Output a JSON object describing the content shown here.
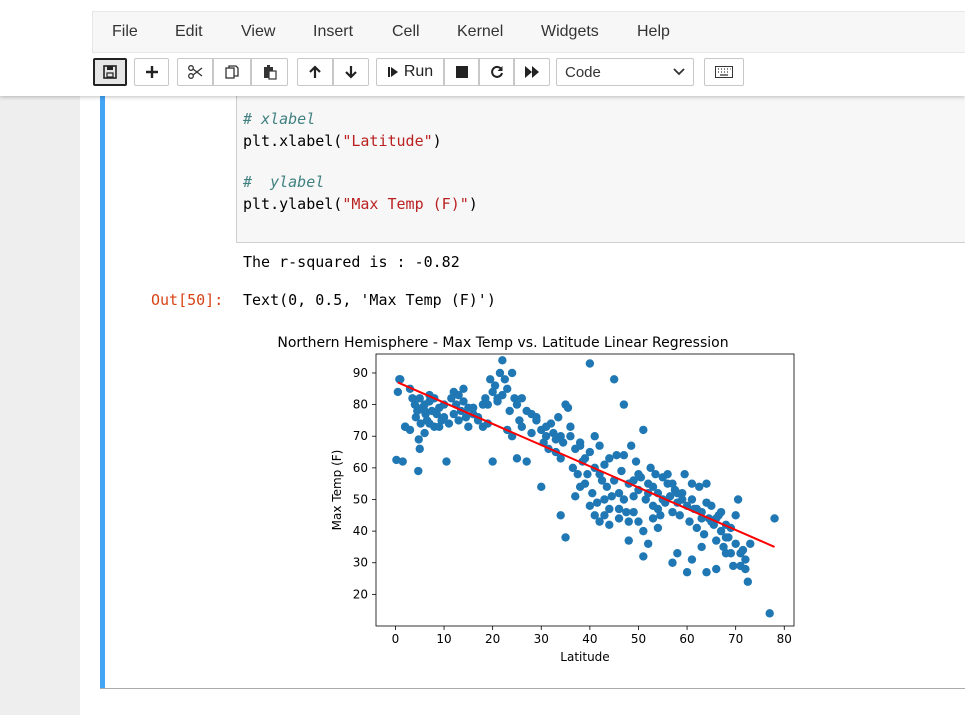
{
  "menu": {
    "items": [
      "File",
      "Edit",
      "View",
      "Insert",
      "Cell",
      "Kernel",
      "Widgets",
      "Help"
    ]
  },
  "toolbar": {
    "run_label": "Run",
    "cell_type": "Code",
    "icons": [
      "save-icon",
      "plus-icon",
      "scissors-icon",
      "copy-icon",
      "paste-icon",
      "arrow-up-icon",
      "arrow-down-icon",
      "step-forward-icon",
      "stop-icon",
      "restart-icon",
      "fast-forward-icon",
      "keyboard-icon"
    ]
  },
  "cell": {
    "code_lines": [
      {
        "comment": "# xlabel"
      },
      {
        "code": "plt.xlabel(",
        "string": "\"Latitude\"",
        "close": ")"
      },
      {
        "blank": true
      },
      {
        "comment": "#  ylabel"
      },
      {
        "code": "plt.ylabel(",
        "string": "\"Max Temp (F)\"",
        "close": ")"
      }
    ],
    "stdout": "The r-squared is : -0.82",
    "out_prompt": "Out[50]:",
    "out_text": "Text(0, 0.5, 'Max Temp (F)')"
  },
  "chart_data": {
    "type": "scatter",
    "title": "Northern Hemisphere - Max Temp vs. Latitude Linear Regression",
    "xlabel": "Latitude",
    "ylabel": "Max Temp (F)",
    "xlim": [
      -4,
      82
    ],
    "ylim": [
      10,
      96
    ],
    "xticks": [
      0,
      10,
      20,
      30,
      40,
      50,
      60,
      70,
      80
    ],
    "yticks": [
      20,
      30,
      40,
      50,
      60,
      70,
      80,
      90
    ],
    "grid": false,
    "colors": {
      "points": "#1f77b4",
      "regression": "#ff0000"
    },
    "regression": {
      "x": [
        0.5,
        78
      ],
      "y": [
        87,
        35
      ]
    },
    "points": [
      [
        0.5,
        84
      ],
      [
        0.8,
        88
      ],
      [
        1.5,
        62
      ],
      [
        0.2,
        62.5
      ],
      [
        2,
        73
      ],
      [
        3,
        72
      ],
      [
        3.5,
        82
      ],
      [
        4,
        80
      ],
      [
        4.2,
        76
      ],
      [
        4.5,
        78
      ],
      [
        5,
        82
      ],
      [
        5.2,
        74
      ],
      [
        5.5,
        79
      ],
      [
        6,
        80
      ],
      [
        6.2,
        77
      ],
      [
        6.5,
        75
      ],
      [
        7,
        81
      ],
      [
        7.5,
        78
      ],
      [
        8,
        73
      ],
      [
        8.5,
        77
      ],
      [
        9,
        79
      ],
      [
        9.5,
        75
      ],
      [
        4.8,
        69
      ],
      [
        5,
        66
      ],
      [
        4.7,
        59
      ],
      [
        6,
        78
      ],
      [
        7,
        83
      ],
      [
        10,
        80
      ],
      [
        10.5,
        62
      ],
      [
        11,
        74
      ],
      [
        11.5,
        82
      ],
      [
        12,
        84
      ],
      [
        12.5,
        80
      ],
      [
        13,
        83
      ],
      [
        13.5,
        78
      ],
      [
        14,
        85
      ],
      [
        14.5,
        76
      ],
      [
        15,
        79
      ],
      [
        16,
        77
      ],
      [
        17,
        75
      ],
      [
        18,
        73
      ],
      [
        18.5,
        82
      ],
      [
        19,
        80
      ],
      [
        19.5,
        88
      ],
      [
        20,
        84
      ],
      [
        20.5,
        86
      ],
      [
        21,
        82
      ],
      [
        21.5,
        90
      ],
      [
        22,
        83
      ],
      [
        22.5,
        88
      ],
      [
        23,
        85
      ],
      [
        23.5,
        78
      ],
      [
        24,
        90
      ],
      [
        24.5,
        82
      ],
      [
        25,
        80
      ],
      [
        25.5,
        75
      ],
      [
        26,
        73
      ],
      [
        27,
        78
      ],
      [
        28,
        77
      ],
      [
        29,
        75
      ],
      [
        30,
        72
      ],
      [
        30.5,
        68
      ],
      [
        31,
        70
      ],
      [
        31.5,
        66
      ],
      [
        32,
        74
      ],
      [
        32.5,
        71
      ],
      [
        33,
        69
      ],
      [
        33.5,
        76
      ],
      [
        34,
        70
      ],
      [
        34.5,
        68
      ],
      [
        35,
        80
      ],
      [
        35.5,
        79
      ],
      [
        36,
        73
      ],
      [
        36.5,
        60
      ],
      [
        37,
        66
      ],
      [
        37.5,
        58
      ],
      [
        38,
        68
      ],
      [
        38.5,
        62
      ],
      [
        39,
        55
      ],
      [
        39.5,
        58
      ],
      [
        40,
        65
      ],
      [
        40.5,
        52
      ],
      [
        41,
        70
      ],
      [
        41.5,
        49
      ],
      [
        42,
        67
      ],
      [
        42.5,
        56
      ],
      [
        43,
        61
      ],
      [
        43.5,
        54
      ],
      [
        44,
        63
      ],
      [
        44.5,
        51
      ],
      [
        45,
        88
      ],
      [
        45.5,
        64
      ],
      [
        46,
        52
      ],
      [
        46.5,
        59
      ],
      [
        47,
        80
      ],
      [
        47.5,
        46
      ],
      [
        48,
        55
      ],
      [
        48.5,
        67
      ],
      [
        49,
        56
      ],
      [
        49.5,
        62
      ],
      [
        50,
        53
      ],
      [
        50.5,
        57
      ],
      [
        51,
        72
      ],
      [
        51.5,
        50
      ],
      [
        52,
        55
      ],
      [
        52.5,
        60
      ],
      [
        53,
        48
      ],
      [
        53.5,
        58
      ],
      [
        54,
        52
      ],
      [
        54.5,
        45
      ],
      [
        55,
        57
      ],
      [
        55.5,
        49
      ],
      [
        56,
        55
      ],
      [
        56.5,
        51
      ],
      [
        57,
        46
      ],
      [
        57.5,
        53
      ],
      [
        58,
        49
      ],
      [
        58.5,
        45
      ],
      [
        59,
        52
      ],
      [
        59.5,
        58
      ],
      [
        60,
        48
      ],
      [
        60.5,
        43
      ],
      [
        61,
        50
      ],
      [
        61.5,
        47
      ],
      [
        62,
        41
      ],
      [
        62.5,
        54
      ],
      [
        63,
        46
      ],
      [
        63.5,
        39
      ],
      [
        64,
        55
      ],
      [
        64.5,
        44
      ],
      [
        65,
        48
      ],
      [
        65.5,
        42
      ],
      [
        66,
        37
      ],
      [
        66.5,
        45
      ],
      [
        67,
        40
      ],
      [
        67.5,
        35
      ],
      [
        68,
        42
      ],
      [
        68.5,
        38
      ],
      [
        69,
        33
      ],
      [
        69.5,
        29
      ],
      [
        70,
        36
      ],
      [
        70.5,
        50
      ],
      [
        71,
        29
      ],
      [
        71.5,
        34
      ],
      [
        72,
        28
      ],
      [
        72.5,
        24
      ],
      [
        73,
        36
      ],
      [
        77,
        14
      ],
      [
        78,
        44
      ],
      [
        22,
        94
      ],
      [
        40,
        93
      ],
      [
        34,
        45
      ],
      [
        35,
        38
      ],
      [
        46,
        44
      ],
      [
        48,
        37
      ],
      [
        51,
        32
      ],
      [
        52,
        36
      ],
      [
        57,
        30
      ],
      [
        58,
        33
      ],
      [
        60,
        27
      ],
      [
        61,
        31
      ],
      [
        63,
        35
      ],
      [
        64,
        27
      ],
      [
        66,
        28
      ],
      [
        68,
        33
      ],
      [
        20,
        62
      ],
      [
        25,
        63
      ],
      [
        27,
        62
      ],
      [
        30,
        54
      ],
      [
        18,
        80
      ],
      [
        16,
        79
      ],
      [
        14,
        81
      ],
      [
        12,
        77
      ],
      [
        10,
        76
      ],
      [
        8,
        82
      ],
      [
        6,
        71
      ],
      [
        3,
        85
      ],
      [
        2,
        73
      ],
      [
        1,
        88
      ],
      [
        7,
        74
      ],
      [
        9,
        73
      ],
      [
        13,
        75
      ],
      [
        15,
        73
      ],
      [
        17,
        76
      ],
      [
        19,
        74
      ],
      [
        21,
        81
      ],
      [
        23,
        72
      ],
      [
        24,
        70
      ],
      [
        26,
        82
      ],
      [
        28,
        71
      ],
      [
        29,
        76
      ],
      [
        31,
        73
      ],
      [
        33,
        65
      ],
      [
        34,
        63
      ],
      [
        36,
        70
      ],
      [
        38,
        67
      ],
      [
        39,
        63
      ],
      [
        41,
        60
      ],
      [
        42,
        58
      ],
      [
        43,
        50
      ],
      [
        44,
        47
      ],
      [
        45,
        56
      ],
      [
        47,
        64
      ],
      [
        49,
        51
      ],
      [
        50,
        58
      ],
      [
        52,
        52
      ],
      [
        53,
        54
      ],
      [
        54,
        47
      ],
      [
        55,
        50
      ],
      [
        56,
        58
      ],
      [
        57,
        55
      ],
      [
        58,
        52
      ],
      [
        59,
        50
      ],
      [
        61,
        55
      ],
      [
        62,
        47
      ],
      [
        63,
        44
      ],
      [
        64,
        49
      ],
      [
        65,
        43
      ],
      [
        66,
        44
      ],
      [
        67,
        46
      ],
      [
        68,
        38
      ],
      [
        69,
        41
      ],
      [
        70,
        45
      ],
      [
        71,
        33
      ],
      [
        72,
        31
      ],
      [
        37,
        51
      ],
      [
        38,
        54
      ],
      [
        40,
        48
      ],
      [
        41,
        45
      ],
      [
        42,
        43
      ],
      [
        43,
        45
      ],
      [
        44,
        42
      ],
      [
        46,
        47
      ],
      [
        47,
        50
      ],
      [
        48,
        43
      ],
      [
        49,
        46
      ],
      [
        50,
        43
      ],
      [
        51,
        40
      ],
      [
        53,
        44
      ],
      [
        54,
        41
      ]
    ]
  }
}
